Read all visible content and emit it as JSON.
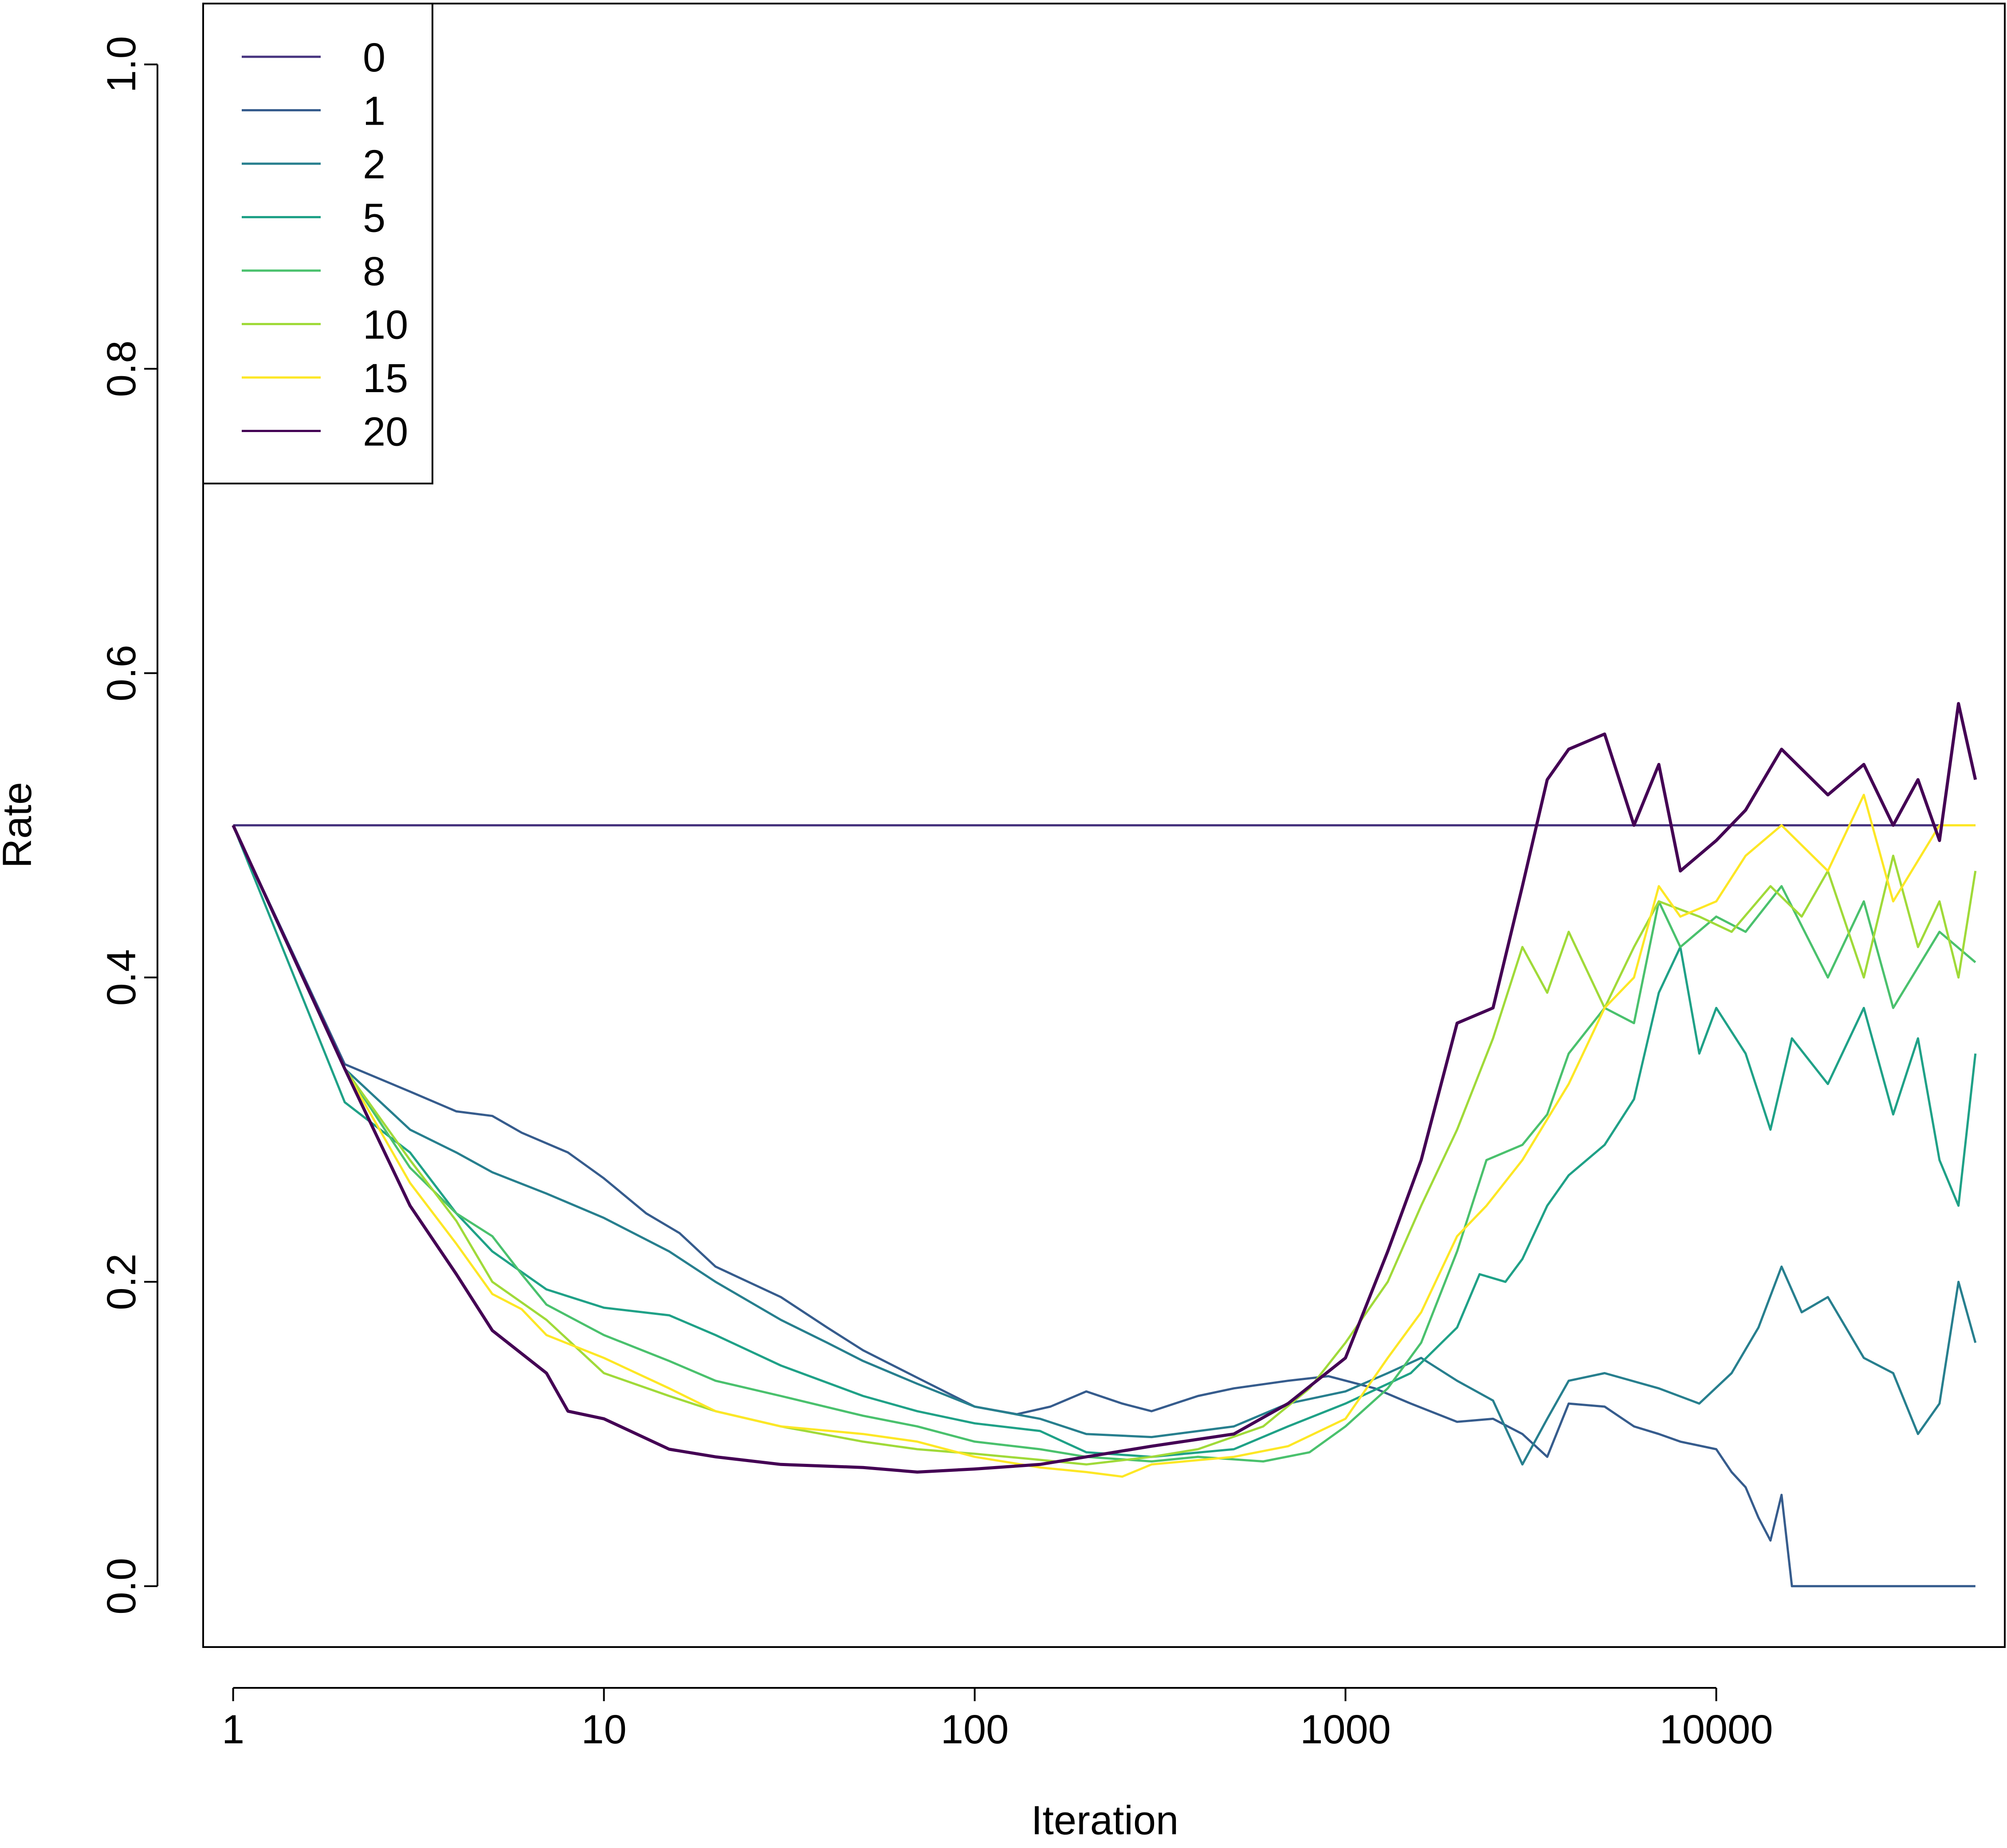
{
  "chart_data": {
    "type": "line",
    "title": "",
    "xlabel": "Iteration",
    "ylabel": "Rate",
    "x_scale": "log",
    "xlim": [
      0.83,
      60000
    ],
    "ylim": [
      -0.04,
      1.04
    ],
    "x_ticks": [
      1,
      10,
      100,
      1000,
      10000
    ],
    "x_tick_labels": [
      "1",
      "10",
      "100",
      "1000",
      "10000"
    ],
    "y_ticks": [
      0.0,
      0.2,
      0.4,
      0.6,
      0.8,
      1.0
    ],
    "y_tick_labels": [
      "0.0",
      "0.2",
      "0.4",
      "0.6",
      "0.8",
      "1.0"
    ],
    "grid": false,
    "legend_position": "top-left",
    "series": [
      {
        "name": "0",
        "color": "#46337E",
        "points": [
          [
            1,
            0.5
          ],
          [
            50000,
            0.5
          ]
        ]
      },
      {
        "name": "1",
        "color": "#365C8D",
        "points": [
          [
            1,
            0.5
          ],
          [
            2,
            0.343
          ],
          [
            3,
            0.325
          ],
          [
            4,
            0.312
          ],
          [
            5,
            0.309
          ],
          [
            6,
            0.298
          ],
          [
            8,
            0.285
          ],
          [
            10,
            0.268
          ],
          [
            13,
            0.245
          ],
          [
            16,
            0.232
          ],
          [
            20,
            0.21
          ],
          [
            30,
            0.19
          ],
          [
            40,
            0.17
          ],
          [
            50,
            0.155
          ],
          [
            70,
            0.137
          ],
          [
            100,
            0.118
          ],
          [
            130,
            0.113
          ],
          [
            160,
            0.118
          ],
          [
            200,
            0.128
          ],
          [
            250,
            0.12
          ],
          [
            300,
            0.115
          ],
          [
            400,
            0.125
          ],
          [
            500,
            0.13
          ],
          [
            700,
            0.135
          ],
          [
            900,
            0.138
          ],
          [
            1200,
            0.13
          ],
          [
            1500,
            0.12
          ],
          [
            2000,
            0.108
          ],
          [
            2500,
            0.11
          ],
          [
            3000,
            0.1
          ],
          [
            3500,
            0.085
          ],
          [
            4000,
            0.12
          ],
          [
            5000,
            0.118
          ],
          [
            6000,
            0.105
          ],
          [
            7000,
            0.1
          ],
          [
            8000,
            0.095
          ],
          [
            10000,
            0.09
          ],
          [
            11000,
            0.075
          ],
          [
            12000,
            0.065
          ],
          [
            13000,
            0.045
          ],
          [
            14000,
            0.03
          ],
          [
            15000,
            0.06
          ],
          [
            16000,
            0.0
          ],
          [
            50000,
            0.0
          ]
        ]
      },
      {
        "name": "2",
        "color": "#277F8E",
        "points": [
          [
            1,
            0.5
          ],
          [
            2,
            0.34
          ],
          [
            3,
            0.3
          ],
          [
            4,
            0.285
          ],
          [
            5,
            0.272
          ],
          [
            7,
            0.258
          ],
          [
            10,
            0.242
          ],
          [
            15,
            0.22
          ],
          [
            20,
            0.2
          ],
          [
            30,
            0.175
          ],
          [
            40,
            0.16
          ],
          [
            50,
            0.148
          ],
          [
            70,
            0.133
          ],
          [
            100,
            0.118
          ],
          [
            150,
            0.11
          ],
          [
            200,
            0.1
          ],
          [
            300,
            0.098
          ],
          [
            500,
            0.105
          ],
          [
            700,
            0.12
          ],
          [
            1000,
            0.128
          ],
          [
            1300,
            0.14
          ],
          [
            1600,
            0.15
          ],
          [
            2000,
            0.135
          ],
          [
            2500,
            0.122
          ],
          [
            3000,
            0.08
          ],
          [
            3500,
            0.11
          ],
          [
            4000,
            0.135
          ],
          [
            5000,
            0.14
          ],
          [
            7000,
            0.13
          ],
          [
            9000,
            0.12
          ],
          [
            11000,
            0.14
          ],
          [
            13000,
            0.17
          ],
          [
            15000,
            0.21
          ],
          [
            17000,
            0.18
          ],
          [
            20000,
            0.19
          ],
          [
            25000,
            0.15
          ],
          [
            30000,
            0.14
          ],
          [
            35000,
            0.1
          ],
          [
            40000,
            0.12
          ],
          [
            45000,
            0.2
          ],
          [
            50000,
            0.16
          ]
        ]
      },
      {
        "name": "5",
        "color": "#1FA187",
        "points": [
          [
            1,
            0.5
          ],
          [
            2,
            0.318
          ],
          [
            3,
            0.285
          ],
          [
            4,
            0.245
          ],
          [
            5,
            0.22
          ],
          [
            7,
            0.195
          ],
          [
            10,
            0.183
          ],
          [
            15,
            0.178
          ],
          [
            20,
            0.165
          ],
          [
            30,
            0.145
          ],
          [
            50,
            0.125
          ],
          [
            70,
            0.115
          ],
          [
            100,
            0.107
          ],
          [
            150,
            0.102
          ],
          [
            200,
            0.088
          ],
          [
            300,
            0.085
          ],
          [
            500,
            0.09
          ],
          [
            700,
            0.105
          ],
          [
            1000,
            0.12
          ],
          [
            1500,
            0.14
          ],
          [
            2000,
            0.17
          ],
          [
            2300,
            0.205
          ],
          [
            2700,
            0.2
          ],
          [
            3000,
            0.215
          ],
          [
            3500,
            0.25
          ],
          [
            4000,
            0.27
          ],
          [
            5000,
            0.29
          ],
          [
            6000,
            0.32
          ],
          [
            7000,
            0.39
          ],
          [
            8000,
            0.42
          ],
          [
            9000,
            0.35
          ],
          [
            10000,
            0.38
          ],
          [
            12000,
            0.35
          ],
          [
            14000,
            0.3
          ],
          [
            16000,
            0.36
          ],
          [
            20000,
            0.33
          ],
          [
            25000,
            0.38
          ],
          [
            30000,
            0.31
          ],
          [
            35000,
            0.36
          ],
          [
            40000,
            0.28
          ],
          [
            45000,
            0.25
          ],
          [
            50000,
            0.35
          ]
        ]
      },
      {
        "name": "8",
        "color": "#4AC16D",
        "points": [
          [
            1,
            0.5
          ],
          [
            2,
            0.34
          ],
          [
            3,
            0.275
          ],
          [
            4,
            0.245
          ],
          [
            5,
            0.23
          ],
          [
            6,
            0.205
          ],
          [
            7,
            0.185
          ],
          [
            10,
            0.165
          ],
          [
            15,
            0.148
          ],
          [
            20,
            0.135
          ],
          [
            30,
            0.125
          ],
          [
            50,
            0.112
          ],
          [
            70,
            0.105
          ],
          [
            100,
            0.095
          ],
          [
            150,
            0.09
          ],
          [
            200,
            0.085
          ],
          [
            300,
            0.082
          ],
          [
            400,
            0.085
          ],
          [
            600,
            0.082
          ],
          [
            800,
            0.088
          ],
          [
            1000,
            0.105
          ],
          [
            1300,
            0.13
          ],
          [
            1600,
            0.16
          ],
          [
            2000,
            0.22
          ],
          [
            2400,
            0.28
          ],
          [
            3000,
            0.29
          ],
          [
            3500,
            0.31
          ],
          [
            4000,
            0.35
          ],
          [
            5000,
            0.38
          ],
          [
            6000,
            0.37
          ],
          [
            7000,
            0.45
          ],
          [
            8000,
            0.42
          ],
          [
            10000,
            0.44
          ],
          [
            12000,
            0.43
          ],
          [
            15000,
            0.46
          ],
          [
            20000,
            0.4
          ],
          [
            25000,
            0.45
          ],
          [
            30000,
            0.38
          ],
          [
            40000,
            0.43
          ],
          [
            50000,
            0.41
          ]
        ]
      },
      {
        "name": "10",
        "color": "#A0DA39",
        "points": [
          [
            1,
            0.5
          ],
          [
            2,
            0.34
          ],
          [
            3,
            0.28
          ],
          [
            4,
            0.24
          ],
          [
            5,
            0.2
          ],
          [
            7,
            0.175
          ],
          [
            10,
            0.14
          ],
          [
            15,
            0.125
          ],
          [
            20,
            0.115
          ],
          [
            30,
            0.105
          ],
          [
            50,
            0.095
          ],
          [
            70,
            0.09
          ],
          [
            100,
            0.087
          ],
          [
            150,
            0.083
          ],
          [
            200,
            0.08
          ],
          [
            300,
            0.085
          ],
          [
            400,
            0.09
          ],
          [
            600,
            0.105
          ],
          [
            800,
            0.13
          ],
          [
            1000,
            0.16
          ],
          [
            1300,
            0.2
          ],
          [
            1600,
            0.25
          ],
          [
            2000,
            0.3
          ],
          [
            2500,
            0.36
          ],
          [
            3000,
            0.42
          ],
          [
            3500,
            0.39
          ],
          [
            4000,
            0.43
          ],
          [
            5000,
            0.38
          ],
          [
            6000,
            0.42
          ],
          [
            7000,
            0.45
          ],
          [
            9000,
            0.44
          ],
          [
            11000,
            0.43
          ],
          [
            14000,
            0.46
          ],
          [
            17000,
            0.44
          ],
          [
            20000,
            0.47
          ],
          [
            25000,
            0.4
          ],
          [
            30000,
            0.48
          ],
          [
            35000,
            0.42
          ],
          [
            40000,
            0.45
          ],
          [
            45000,
            0.4
          ],
          [
            50000,
            0.47
          ]
        ]
      },
      {
        "name": "15",
        "color": "#FDE725",
        "points": [
          [
            1,
            0.5
          ],
          [
            2,
            0.34
          ],
          [
            3,
            0.265
          ],
          [
            4,
            0.225
          ],
          [
            5,
            0.192
          ],
          [
            6,
            0.182
          ],
          [
            7,
            0.165
          ],
          [
            10,
            0.15
          ],
          [
            15,
            0.13
          ],
          [
            20,
            0.115
          ],
          [
            30,
            0.105
          ],
          [
            50,
            0.1
          ],
          [
            70,
            0.095
          ],
          [
            100,
            0.085
          ],
          [
            150,
            0.078
          ],
          [
            200,
            0.075
          ],
          [
            250,
            0.072
          ],
          [
            300,
            0.08
          ],
          [
            500,
            0.085
          ],
          [
            700,
            0.092
          ],
          [
            1000,
            0.11
          ],
          [
            1300,
            0.15
          ],
          [
            1600,
            0.18
          ],
          [
            2000,
            0.23
          ],
          [
            2400,
            0.25
          ],
          [
            3000,
            0.28
          ],
          [
            4000,
            0.33
          ],
          [
            5000,
            0.38
          ],
          [
            6000,
            0.4
          ],
          [
            7000,
            0.46
          ],
          [
            8000,
            0.44
          ],
          [
            10000,
            0.45
          ],
          [
            12000,
            0.48
          ],
          [
            15000,
            0.5
          ],
          [
            20000,
            0.47
          ],
          [
            25000,
            0.52
          ],
          [
            30000,
            0.45
          ],
          [
            40000,
            0.5
          ],
          [
            50000,
            0.5
          ]
        ]
      },
      {
        "name": "20",
        "color": "#440154",
        "points": [
          [
            1,
            0.5
          ],
          [
            2,
            0.34
          ],
          [
            3,
            0.25
          ],
          [
            4,
            0.205
          ],
          [
            5,
            0.168
          ],
          [
            7,
            0.14
          ],
          [
            8,
            0.115
          ],
          [
            10,
            0.11
          ],
          [
            15,
            0.09
          ],
          [
            20,
            0.085
          ],
          [
            30,
            0.08
          ],
          [
            50,
            0.078
          ],
          [
            70,
            0.075
          ],
          [
            100,
            0.077
          ],
          [
            150,
            0.08
          ],
          [
            200,
            0.085
          ],
          [
            300,
            0.092
          ],
          [
            500,
            0.1
          ],
          [
            700,
            0.12
          ],
          [
            1000,
            0.15
          ],
          [
            1300,
            0.22
          ],
          [
            1600,
            0.28
          ],
          [
            2000,
            0.37
          ],
          [
            2500,
            0.38
          ],
          [
            3000,
            0.46
          ],
          [
            3500,
            0.53
          ],
          [
            4000,
            0.55
          ],
          [
            5000,
            0.56
          ],
          [
            6000,
            0.5
          ],
          [
            7000,
            0.54
          ],
          [
            8000,
            0.47
          ],
          [
            10000,
            0.49
          ],
          [
            12000,
            0.51
          ],
          [
            15000,
            0.55
          ],
          [
            20000,
            0.52
          ],
          [
            25000,
            0.54
          ],
          [
            30000,
            0.5
          ],
          [
            35000,
            0.53
          ],
          [
            40000,
            0.49
          ],
          [
            45000,
            0.58
          ],
          [
            50000,
            0.53
          ]
        ]
      }
    ]
  }
}
